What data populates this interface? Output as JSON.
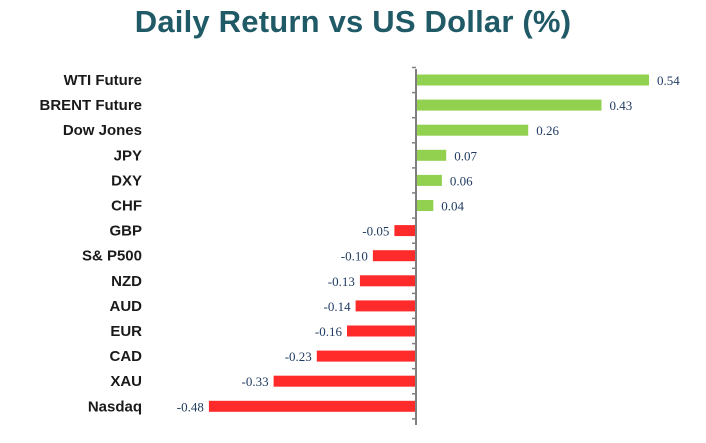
{
  "chart_data": {
    "type": "bar",
    "orientation": "horizontal",
    "title": "Daily Return vs US Dollar (%)",
    "categories": [
      "WTI Future",
      "BRENT Future",
      "Dow Jones",
      "JPY",
      "DXY",
      "CHF",
      "GBP",
      "S& P500",
      "NZD",
      "AUD",
      "EUR",
      "CAD",
      "XAU",
      "Nasdaq"
    ],
    "values": [
      0.54,
      0.43,
      0.26,
      0.07,
      0.06,
      0.04,
      -0.05,
      -0.1,
      -0.13,
      -0.14,
      -0.16,
      -0.23,
      -0.33,
      -0.48
    ],
    "value_labels": [
      "0.54",
      "0.43",
      "0.26",
      "0.07",
      "0.06",
      "0.04",
      "-0.05",
      "-0.10",
      "-0.13",
      "-0.14",
      "-0.16",
      "-0.23",
      "-0.33",
      "-0.48"
    ],
    "xlim": [
      -0.5,
      0.6
    ],
    "grid": false,
    "legend": "none",
    "colors": {
      "title": "#1f5a66",
      "positive": "#92d050",
      "negative": "#ff2a2a",
      "axis": "#7f7f7f",
      "category_text": "#1a1a1a",
      "value_text": "#1f3a5f"
    }
  }
}
